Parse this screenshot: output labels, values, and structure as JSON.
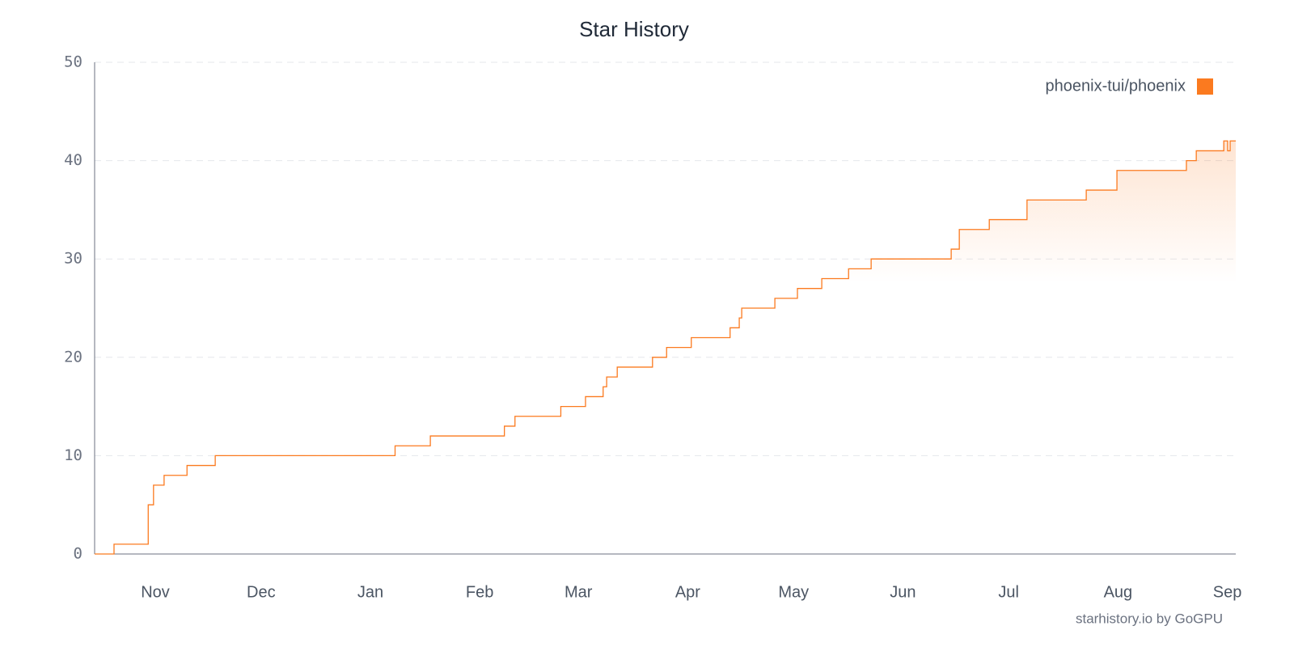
{
  "chart_data": {
    "type": "step-line",
    "title": "Star History",
    "credit": "starhistory.io by GoGPU",
    "legend": "top-right",
    "grid": true,
    "xlim": [
      -17.2,
      306.4
    ],
    "xticks": [
      {
        "value": 0,
        "label": "Nov"
      },
      {
        "value": 30,
        "label": "Dec"
      },
      {
        "value": 61,
        "label": "Jan"
      },
      {
        "value": 92,
        "label": "Feb"
      },
      {
        "value": 120,
        "label": "Mar"
      },
      {
        "value": 151,
        "label": "Apr"
      },
      {
        "value": 181,
        "label": "May"
      },
      {
        "value": 212,
        "label": "Jun"
      },
      {
        "value": 242,
        "label": "Jul"
      },
      {
        "value": 273,
        "label": "Aug"
      },
      {
        "value": 304,
        "label": "Sep"
      }
    ],
    "ylim": [
      0,
      50
    ],
    "yticks": [
      0,
      10,
      20,
      30,
      40,
      50
    ],
    "x": [
      -17.2,
      -11.7,
      -2,
      -0.5,
      2.5,
      9,
      17,
      68,
      78,
      99,
      102,
      115,
      122,
      127,
      128,
      131,
      141,
      145,
      152,
      163,
      165.6,
      166.3,
      175.7,
      182.1,
      189,
      196.6,
      203,
      225.7,
      228,
      236.5,
      247.2,
      264,
      272.7,
      292.4,
      295.2,
      303,
      304.1,
      304.8,
      306.4
    ],
    "series": [
      {
        "name": "phoenix-tui/phoenix",
        "color": "#fb7a1f",
        "values": [
          0,
          1,
          5,
          7,
          8,
          9,
          10,
          11,
          12,
          13,
          14,
          15,
          16,
          17,
          18,
          19,
          20,
          21,
          22,
          23,
          24,
          25,
          26,
          27,
          28,
          29,
          30,
          31,
          33,
          34,
          36,
          37,
          39,
          40,
          41,
          42,
          41,
          42,
          42
        ]
      }
    ]
  }
}
